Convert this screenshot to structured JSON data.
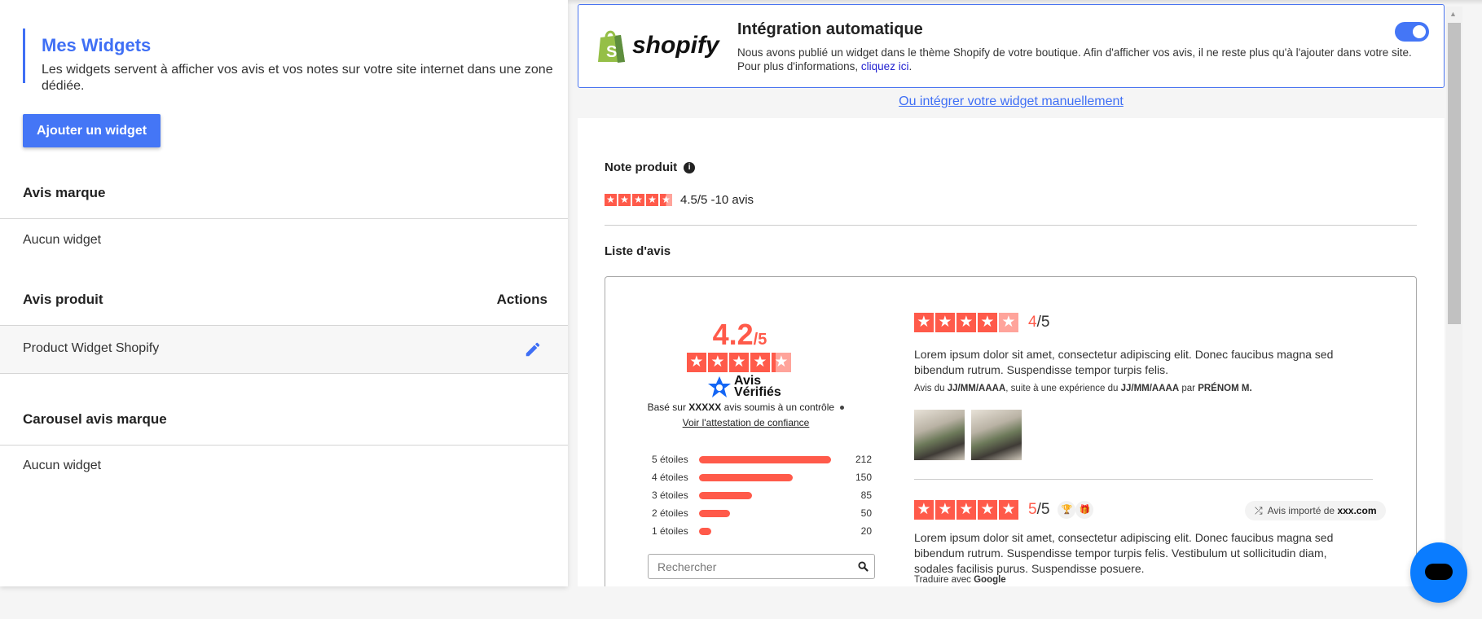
{
  "left": {
    "title": "Mes Widgets",
    "description": "Les widgets servent à afficher vos avis et vos notes sur votre site internet dans une zone dédiée.",
    "add_button": "Ajouter un widget",
    "sections": [
      {
        "title": "Avis marque",
        "empty": "Aucun widget"
      },
      {
        "title": "Avis produit",
        "actions_label": "Actions",
        "rows": [
          {
            "name": "Product Widget Shopify",
            "action_icon": "pencil-icon"
          }
        ]
      },
      {
        "title": "Carousel avis marque",
        "empty": "Aucun widget"
      }
    ]
  },
  "integration": {
    "logo_text": "shopify",
    "title": "Intégration automatique",
    "text": "Nous avons publié un widget dans le thème Shopify de votre boutique. Afin d'afficher vos avis, il ne reste plus qu'à l'ajouter dans votre site.",
    "more_prefix": "Pour plus d'informations,",
    "more_link": "cliquez ici",
    "toggle_on": true,
    "manual_link": "Ou intégrer votre widget manuellement"
  },
  "preview": {
    "note_label": "Note produit",
    "note_rating": 4.5,
    "note_text": "4.5/5 -10 avis",
    "list_label": "Liste d'avis",
    "summary": {
      "score": "4.2",
      "out_of": "/5",
      "rating": 4.2,
      "brand_line1": "Avis",
      "brand_line2": "Vérifiés",
      "based_prefix": "Basé sur",
      "based_count": "XXXXX",
      "based_suffix": "avis soumis à un contrôle",
      "attestation_link": "Voir l'attestation de confiance",
      "distribution": [
        {
          "label": "5 étoiles",
          "count": 212
        },
        {
          "label": "4 étoiles",
          "count": 150
        },
        {
          "label": "3 étoiles",
          "count": 85
        },
        {
          "label": "2 étoiles",
          "count": 50
        },
        {
          "label": "1 étoiles",
          "count": 20
        }
      ],
      "search_placeholder": "Rechercher"
    },
    "reviews": [
      {
        "rating": 4,
        "score": "4",
        "out_of": "/5",
        "text": "Lorem ipsum dolor sit amet, consectetur adipiscing elit. Donec faucibus magna sed bibendum rutrum. Suspendisse tempor turpis felis.",
        "meta_p1": "Avis du",
        "meta_date1": "JJ/MM/AAAA",
        "meta_p2": ", suite à une expérience du",
        "meta_date2": "JJ/MM/AAAA",
        "meta_p3": "par",
        "meta_author": "PRÉNOM M."
      },
      {
        "rating": 5,
        "score": "5",
        "out_of": "/5",
        "imported_prefix": "Avis importé de",
        "imported_source": "xxx.com",
        "text": "Lorem ipsum dolor sit amet, consectetur adipiscing elit. Donec faucibus magna sed bibendum rutrum. Suspendisse tempor turpis felis. Vestibulum ut sollicitudin diam, sodales facilisis purus. Suspendisse posuere.",
        "translate_prefix": "Traduire avec",
        "translate_brand": "Google"
      }
    ]
  },
  "colors": {
    "accent": "#3f6ff5",
    "star": "#ff5a4a",
    "chat": "#0a7cff"
  }
}
